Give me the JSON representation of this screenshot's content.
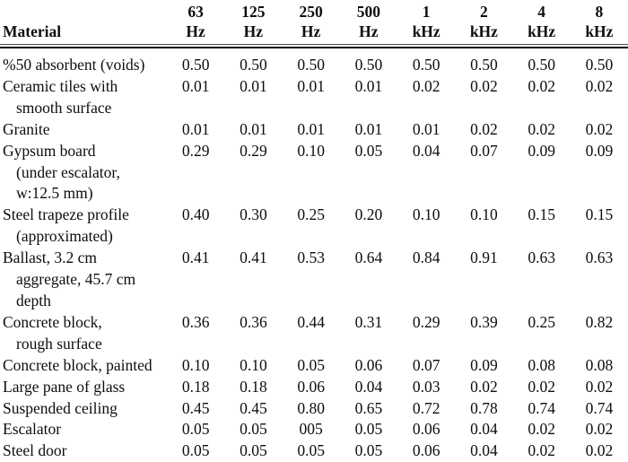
{
  "table": {
    "material_header": "Material",
    "columns": [
      {
        "line1": "63",
        "line2": "Hz"
      },
      {
        "line1": "125",
        "line2": "Hz"
      },
      {
        "line1": "250",
        "line2": "Hz"
      },
      {
        "line1": "500",
        "line2": "Hz"
      },
      {
        "line1": "1",
        "line2": "kHz"
      },
      {
        "line1": "2",
        "line2": "kHz"
      },
      {
        "line1": "4",
        "line2": "kHz"
      },
      {
        "line1": "8",
        "line2": "kHz"
      }
    ],
    "rows": [
      {
        "material_lines": [
          "%50 absorbent (voids)"
        ],
        "values": [
          "0.50",
          "0.50",
          "0.50",
          "0.50",
          "0.50",
          "0.50",
          "0.50",
          "0.50"
        ]
      },
      {
        "material_lines": [
          "Ceramic tiles with",
          "smooth surface"
        ],
        "values": [
          "0.01",
          "0.01",
          "0.01",
          "0.01",
          "0.02",
          "0.02",
          "0.02",
          "0.02"
        ]
      },
      {
        "material_lines": [
          "Granite"
        ],
        "values": [
          "0.01",
          "0.01",
          "0.01",
          "0.01",
          "0.01",
          "0.02",
          "0.02",
          "0.02"
        ]
      },
      {
        "material_lines": [
          "Gypsum board",
          "(under escalator,",
          "w:12.5 mm)"
        ],
        "values": [
          "0.29",
          "0.29",
          "0.10",
          "0.05",
          "0.04",
          "0.07",
          "0.09",
          "0.09"
        ]
      },
      {
        "material_lines": [
          "Steel trapeze profile",
          "(approximated)"
        ],
        "values": [
          "0.40",
          "0.30",
          "0.25",
          "0.20",
          "0.10",
          "0.10",
          "0.15",
          "0.15"
        ]
      },
      {
        "material_lines": [
          "Ballast, 3.2 cm",
          "aggregate, 45.7 cm",
          "depth"
        ],
        "values": [
          "0.41",
          "0.41",
          "0.53",
          "0.64",
          "0.84",
          "0.91",
          "0.63",
          "0.63"
        ]
      },
      {
        "material_lines": [
          "Concrete block,",
          "rough surface"
        ],
        "values": [
          "0.36",
          "0.36",
          "0.44",
          "0.31",
          "0.29",
          "0.39",
          "0.25",
          "0.82"
        ]
      },
      {
        "material_lines": [
          "Concrete block, painted"
        ],
        "values": [
          "0.10",
          "0.10",
          "0.05",
          "0.06",
          "0.07",
          "0.09",
          "0.08",
          "0.08"
        ]
      },
      {
        "material_lines": [
          "Large pane of glass"
        ],
        "values": [
          "0.18",
          "0.18",
          "0.06",
          "0.04",
          "0.03",
          "0.02",
          "0.02",
          "0.02"
        ]
      },
      {
        "material_lines": [
          "Suspended ceiling"
        ],
        "values": [
          "0.45",
          "0.45",
          "0.80",
          "0.65",
          "0.72",
          "0.78",
          "0.74",
          "0.74"
        ]
      },
      {
        "material_lines": [
          "Escalator"
        ],
        "values": [
          "0.05",
          "0.05",
          "005",
          "0.05",
          "0.06",
          "0.04",
          "0.02",
          "0.02"
        ]
      },
      {
        "material_lines": [
          "Steel door"
        ],
        "values": [
          "0.05",
          "0.05",
          "0.05",
          "0.05",
          "0.06",
          "0.04",
          "0.02",
          "0.02"
        ]
      }
    ]
  }
}
